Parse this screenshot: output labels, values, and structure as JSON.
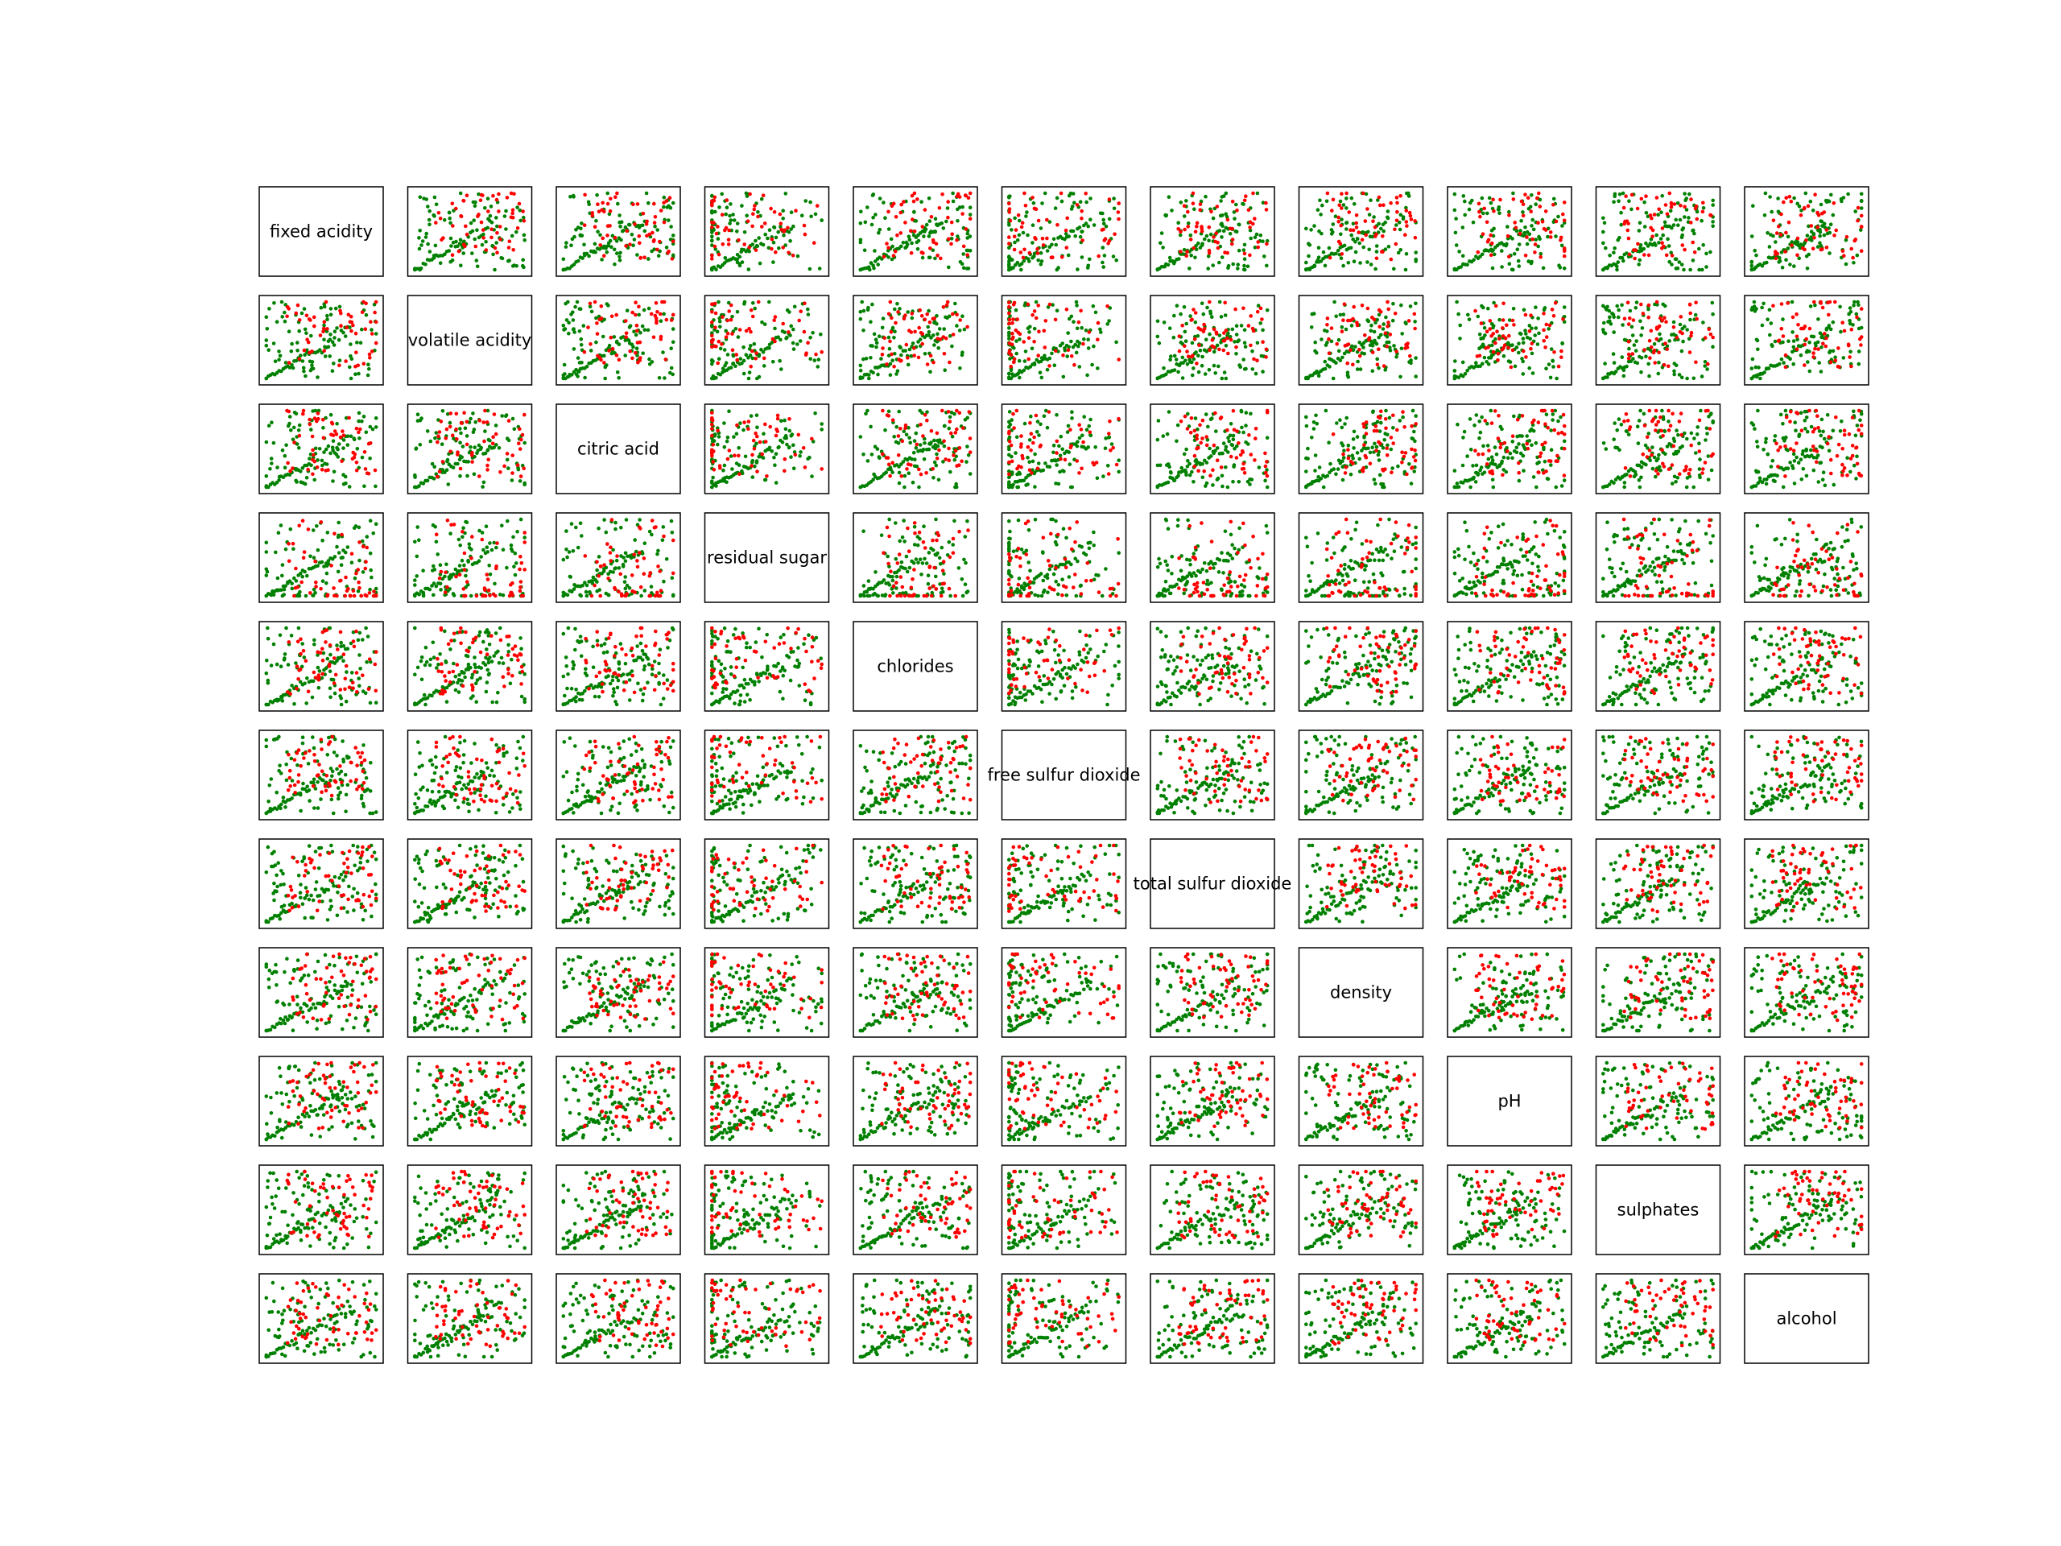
{
  "chart_data": {
    "type": "scatter",
    "layout": "scatter-matrix",
    "variables": [
      "fixed acidity",
      "volatile acidity",
      "citric acid",
      "residual sugar",
      "chlorides",
      "free sulfur dioxide",
      "total sulfur dioxide",
      "density",
      "pH",
      "sulphates",
      "alcohol"
    ],
    "series": [
      {
        "name": "",
        "color": "#008000"
      },
      {
        "name": "",
        "color": "#ff0000"
      }
    ],
    "diagonal": "variable name",
    "off_diagonal": "pairwise scatter plot",
    "axes_ticks": false,
    "grid": false,
    "legend": "none"
  }
}
